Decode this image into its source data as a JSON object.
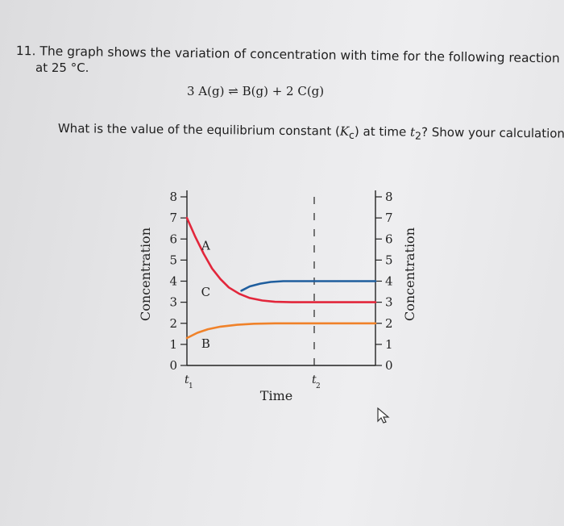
{
  "question": {
    "heading": "11. The graph shows the variation of concentration with time for the following reaction",
    "heading_cont": "at 25 °C.",
    "equation_left": "3 A(g)",
    "equation_arrow": "⇌",
    "equation_right": "B(g) + 2 C(g)",
    "prompt_before": "What is the value of the equilibrium constant (",
    "prompt_k": "K",
    "prompt_k_sub": "c",
    "prompt_mid": ") at time ",
    "prompt_t": "t",
    "prompt_t_sub": "2",
    "prompt_after": "? Show your calculation"
  },
  "chart_data": {
    "type": "line",
    "xlabel": "Time",
    "ylabel_left": "Concentration",
    "ylabel_right": "Concentration",
    "ylim": [
      0,
      8
    ],
    "yticks": [
      "0",
      "1",
      "2",
      "3",
      "4",
      "5",
      "6",
      "7",
      "8"
    ],
    "x_markers": [
      {
        "label": "t",
        "sub": "1",
        "t": 0
      },
      {
        "label": "t",
        "sub": "2",
        "t": 6
      }
    ],
    "xlim": [
      0,
      9
    ],
    "grid": false,
    "series": [
      {
        "name": "A",
        "color": "#e2263b",
        "points": [
          [
            0,
            7
          ],
          [
            0.4,
            6.1
          ],
          [
            0.8,
            5.3
          ],
          [
            1.2,
            4.6
          ],
          [
            1.6,
            4.1
          ],
          [
            2.0,
            3.7
          ],
          [
            2.5,
            3.4
          ],
          [
            3.0,
            3.2
          ],
          [
            3.6,
            3.08
          ],
          [
            4.2,
            3.02
          ],
          [
            5.0,
            3.0
          ],
          [
            6.0,
            3.0
          ],
          [
            9.0,
            3.0
          ]
        ]
      },
      {
        "name": "C",
        "color": "#1f5e9e",
        "points": [
          [
            2.6,
            3.55
          ],
          [
            3.0,
            3.75
          ],
          [
            3.5,
            3.88
          ],
          [
            4.0,
            3.96
          ],
          [
            4.6,
            4.0
          ],
          [
            6.0,
            4.0
          ],
          [
            9.0,
            4.0
          ]
        ]
      },
      {
        "name": "B",
        "color": "#f0822a",
        "points": [
          [
            0,
            1.3
          ],
          [
            0.5,
            1.55
          ],
          [
            1.0,
            1.72
          ],
          [
            1.6,
            1.84
          ],
          [
            2.4,
            1.93
          ],
          [
            3.2,
            1.98
          ],
          [
            4.2,
            2.0
          ],
          [
            6.0,
            2.0
          ],
          [
            9.0,
            2.0
          ]
        ]
      }
    ],
    "annotations": [
      {
        "text": "A",
        "x": 0.9,
        "y": 5.5
      },
      {
        "text": "C",
        "x": 0.9,
        "y": 3.3
      },
      {
        "text": "B",
        "x": 0.9,
        "y": 0.85
      }
    ]
  }
}
